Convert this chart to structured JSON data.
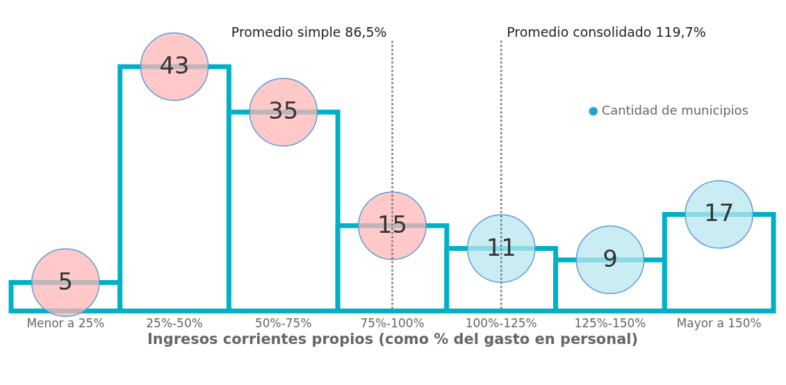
{
  "chart_data": {
    "type": "bar",
    "xlabel": "Ingresos corrientes propios (como % del gasto en personal)",
    "categories": [
      "Menor a 25%",
      "25%-50%",
      "50%-75%",
      "75%-100%",
      "100%-125%",
      "125%-150%",
      "Mayor a 150%"
    ],
    "series": [
      {
        "name": "Cantidad de municipios",
        "color": "#00b0c6",
        "values": [
          5,
          43,
          35,
          15,
          11,
          9,
          17
        ]
      }
    ],
    "colors": [
      "#ffb7b7",
      "#ffb7b7",
      "#ffb7b7",
      "#ffb7b7",
      "#b8e7ef",
      "#b8e7ef",
      "#b8e7ef"
    ],
    "data_labels": true,
    "legend": "right",
    "grid": false,
    "tick_labels": "x",
    "ref_lines": [
      {
        "axis": "x",
        "value": "75%-100%",
        "label": "Promedio simple 86,5%",
        "color": "#777777",
        "line_style": "dotted"
      },
      {
        "axis": "x",
        "value": "100%-125%",
        "label": "Promedio consolidado 119,7%",
        "color": "#777777",
        "line_style": "dotted"
      }
    ]
  }
}
